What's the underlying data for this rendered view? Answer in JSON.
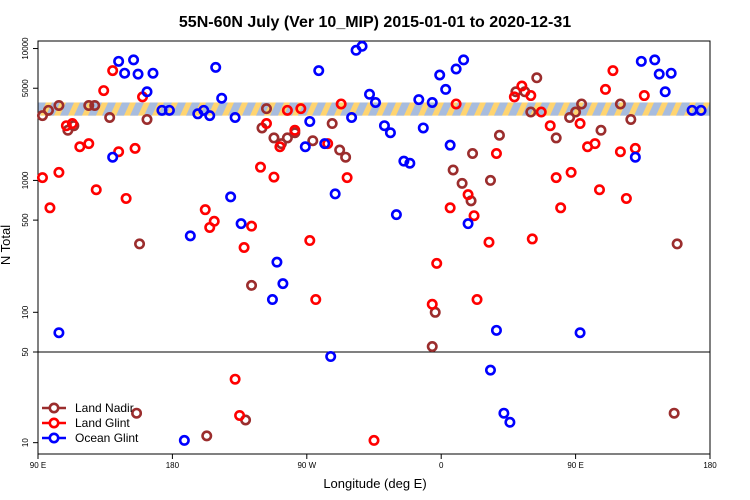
{
  "chart_data": {
    "type": "scatter",
    "title": "55N-60N July (Ver 10_MIP)   2015-01-01 to 2020-12-31",
    "xlabel": "Longitude (deg E)",
    "ylabel": "N Total",
    "x_scale": "longitude, starts at 90E, wraps through 180 and 0 back to 180",
    "y_scale": "log, with linear lower panel below 50",
    "xlim_deg_from_90E": [
      0,
      450
    ],
    "ylim": [
      5,
      15000
    ],
    "x_ticks": [
      {
        "deg": 0,
        "label": "90 E"
      },
      {
        "deg": 90,
        "label": "180"
      },
      {
        "deg": 180,
        "label": "90 W"
      },
      {
        "deg": 270,
        "label": "0"
      },
      {
        "deg": 360,
        "label": "90 E"
      },
      {
        "deg": 450,
        "label": "180"
      }
    ],
    "y_ticks": [
      {
        "value": 10000,
        "label": "10000"
      },
      {
        "value": 5000,
        "label": "5000"
      },
      {
        "value": 1000,
        "label": "1000"
      },
      {
        "value": 500,
        "label": "500"
      },
      {
        "value": 100,
        "label": "100"
      },
      {
        "value": 50,
        "label": "50"
      },
      {
        "value": 10,
        "label": "10"
      }
    ],
    "band_annotation": {
      "y_low": 3100,
      "y_high": 3900,
      "colors": [
        "#ffd470",
        "#a7bcde"
      ]
    },
    "colors": {
      "land_nadir": "#9b2d2d",
      "land_glint": "#ff0000",
      "ocean_glint": "#0000ff"
    },
    "series": [
      {
        "name": "Land Nadir",
        "color": "#9b2d2d",
        "points": [
          {
            "x": 3,
            "y": 3100
          },
          {
            "x": 7,
            "y": 3400
          },
          {
            "x": 14,
            "y": 3700
          },
          {
            "x": 20,
            "y": 2400
          },
          {
            "x": 24,
            "y": 2600
          },
          {
            "x": 34,
            "y": 3700
          },
          {
            "x": 38,
            "y": 3700
          },
          {
            "x": 48,
            "y": 3000
          },
          {
            "x": 66,
            "y": 23
          },
          {
            "x": 68,
            "y": 330
          },
          {
            "x": 73,
            "y": 2900
          },
          {
            "x": 113,
            "y": 13
          },
          {
            "x": 139,
            "y": 20
          },
          {
            "x": 143,
            "y": 160
          },
          {
            "x": 150,
            "y": 2500
          },
          {
            "x": 153,
            "y": 3500
          },
          {
            "x": 158,
            "y": 2100
          },
          {
            "x": 163,
            "y": 1900
          },
          {
            "x": 167,
            "y": 2100
          },
          {
            "x": 172,
            "y": 2300
          },
          {
            "x": 184,
            "y": 2000
          },
          {
            "x": 197,
            "y": 2700
          },
          {
            "x": 202,
            "y": 1700
          },
          {
            "x": 206,
            "y": 1500
          },
          {
            "x": 264,
            "y": 55
          },
          {
            "x": 266,
            "y": 100
          },
          {
            "x": 278,
            "y": 1200
          },
          {
            "x": 284,
            "y": 950
          },
          {
            "x": 290,
            "y": 700
          },
          {
            "x": 291,
            "y": 1600
          },
          {
            "x": 303,
            "y": 1000
          },
          {
            "x": 309,
            "y": 2200
          },
          {
            "x": 320,
            "y": 4700
          },
          {
            "x": 326,
            "y": 4700
          },
          {
            "x": 330,
            "y": 3300
          },
          {
            "x": 334,
            "y": 6000
          },
          {
            "x": 347,
            "y": 2100
          },
          {
            "x": 356,
            "y": 3000
          },
          {
            "x": 360,
            "y": 3300
          },
          {
            "x": 364,
            "y": 3800
          },
          {
            "x": 377,
            "y": 2400
          },
          {
            "x": 390,
            "y": 3800
          },
          {
            "x": 397,
            "y": 2900
          },
          {
            "x": 426,
            "y": 23
          },
          {
            "x": 428,
            "y": 330
          }
        ]
      },
      {
        "name": "Land Glint",
        "color": "#ff0000",
        "points": [
          {
            "x": 3,
            "y": 1050
          },
          {
            "x": 8,
            "y": 620
          },
          {
            "x": 14,
            "y": 1150
          },
          {
            "x": 19,
            "y": 2600
          },
          {
            "x": 23,
            "y": 2700
          },
          {
            "x": 28,
            "y": 1800
          },
          {
            "x": 34,
            "y": 1900
          },
          {
            "x": 39,
            "y": 850
          },
          {
            "x": 44,
            "y": 4800
          },
          {
            "x": 50,
            "y": 6800
          },
          {
            "x": 54,
            "y": 1650
          },
          {
            "x": 59,
            "y": 730
          },
          {
            "x": 65,
            "y": 1750
          },
          {
            "x": 70,
            "y": 4300
          },
          {
            "x": 112,
            "y": 600
          },
          {
            "x": 115,
            "y": 440
          },
          {
            "x": 118,
            "y": 490
          },
          {
            "x": 132,
            "y": 38
          },
          {
            "x": 135,
            "y": 22
          },
          {
            "x": 138,
            "y": 310
          },
          {
            "x": 143,
            "y": 450
          },
          {
            "x": 149,
            "y": 1260
          },
          {
            "x": 153,
            "y": 2700
          },
          {
            "x": 158,
            "y": 1060
          },
          {
            "x": 162,
            "y": 1800
          },
          {
            "x": 167,
            "y": 3400
          },
          {
            "x": 172,
            "y": 2400
          },
          {
            "x": 176,
            "y": 3500
          },
          {
            "x": 182,
            "y": 350
          },
          {
            "x": 186,
            "y": 125
          },
          {
            "x": 194,
            "y": 1900
          },
          {
            "x": 203,
            "y": 3800
          },
          {
            "x": 207,
            "y": 1050
          },
          {
            "x": 225,
            "y": 11
          },
          {
            "x": 264,
            "y": 115
          },
          {
            "x": 267,
            "y": 235
          },
          {
            "x": 276,
            "y": 620
          },
          {
            "x": 280,
            "y": 3800
          },
          {
            "x": 288,
            "y": 780
          },
          {
            "x": 292,
            "y": 540
          },
          {
            "x": 294,
            "y": 125
          },
          {
            "x": 302,
            "y": 340
          },
          {
            "x": 307,
            "y": 1600
          },
          {
            "x": 319,
            "y": 4300
          },
          {
            "x": 324,
            "y": 5200
          },
          {
            "x": 330,
            "y": 4400
          },
          {
            "x": 331,
            "y": 360
          },
          {
            "x": 337,
            "y": 3300
          },
          {
            "x": 343,
            "y": 2600
          },
          {
            "x": 347,
            "y": 1050
          },
          {
            "x": 350,
            "y": 620
          },
          {
            "x": 357,
            "y": 1150
          },
          {
            "x": 363,
            "y": 2700
          },
          {
            "x": 368,
            "y": 1800
          },
          {
            "x": 373,
            "y": 1900
          },
          {
            "x": 376,
            "y": 850
          },
          {
            "x": 380,
            "y": 4900
          },
          {
            "x": 385,
            "y": 6800
          },
          {
            "x": 390,
            "y": 1650
          },
          {
            "x": 394,
            "y": 730
          },
          {
            "x": 400,
            "y": 1750
          },
          {
            "x": 406,
            "y": 4400
          }
        ]
      },
      {
        "name": "Ocean Glint",
        "color": "#0000ff",
        "points": [
          {
            "x": 14,
            "y": 70
          },
          {
            "x": 50,
            "y": 1500
          },
          {
            "x": 54,
            "y": 8000
          },
          {
            "x": 58,
            "y": 6500
          },
          {
            "x": 64,
            "y": 8200
          },
          {
            "x": 67,
            "y": 6400
          },
          {
            "x": 73,
            "y": 4700
          },
          {
            "x": 77,
            "y": 6500
          },
          {
            "x": 83,
            "y": 3400
          },
          {
            "x": 88,
            "y": 3400
          },
          {
            "x": 98,
            "y": 11
          },
          {
            "x": 102,
            "y": 380
          },
          {
            "x": 107,
            "y": 3200
          },
          {
            "x": 111,
            "y": 3400
          },
          {
            "x": 115,
            "y": 3100
          },
          {
            "x": 119,
            "y": 7200
          },
          {
            "x": 123,
            "y": 4200
          },
          {
            "x": 129,
            "y": 750
          },
          {
            "x": 132,
            "y": 3000
          },
          {
            "x": 136,
            "y": 470
          },
          {
            "x": 157,
            "y": 125
          },
          {
            "x": 160,
            "y": 240
          },
          {
            "x": 164,
            "y": 165
          },
          {
            "x": 179,
            "y": 1800
          },
          {
            "x": 182,
            "y": 2800
          },
          {
            "x": 188,
            "y": 6800
          },
          {
            "x": 192,
            "y": 1900
          },
          {
            "x": 196,
            "y": 48
          },
          {
            "x": 199,
            "y": 790
          },
          {
            "x": 210,
            "y": 3000
          },
          {
            "x": 213,
            "y": 9700
          },
          {
            "x": 217,
            "y": 10400
          },
          {
            "x": 222,
            "y": 4500
          },
          {
            "x": 226,
            "y": 3900
          },
          {
            "x": 232,
            "y": 2600
          },
          {
            "x": 236,
            "y": 2300
          },
          {
            "x": 240,
            "y": 550
          },
          {
            "x": 245,
            "y": 1400
          },
          {
            "x": 249,
            "y": 1350
          },
          {
            "x": 255,
            "y": 4100
          },
          {
            "x": 258,
            "y": 2500
          },
          {
            "x": 264,
            "y": 3900
          },
          {
            "x": 269,
            "y": 6300
          },
          {
            "x": 273,
            "y": 4900
          },
          {
            "x": 276,
            "y": 1850
          },
          {
            "x": 280,
            "y": 7000
          },
          {
            "x": 285,
            "y": 8200
          },
          {
            "x": 288,
            "y": 470
          },
          {
            "x": 303,
            "y": 42
          },
          {
            "x": 307,
            "y": 73
          },
          {
            "x": 312,
            "y": 23
          },
          {
            "x": 316,
            "y": 19
          },
          {
            "x": 363,
            "y": 70
          },
          {
            "x": 400,
            "y": 1500
          },
          {
            "x": 404,
            "y": 8000
          },
          {
            "x": 413,
            "y": 8200
          },
          {
            "x": 416,
            "y": 6400
          },
          {
            "x": 420,
            "y": 4700
          },
          {
            "x": 424,
            "y": 6500
          },
          {
            "x": 438,
            "y": 3400
          },
          {
            "x": 444,
            "y": 3400
          }
        ]
      }
    ],
    "legend": {
      "position": "bottom-left",
      "entries": [
        {
          "label": "Land Nadir",
          "color": "#9b2d2d"
        },
        {
          "label": "Land Glint",
          "color": "#ff0000"
        },
        {
          "label": "Ocean Glint",
          "color": "#0000ff"
        }
      ]
    }
  }
}
